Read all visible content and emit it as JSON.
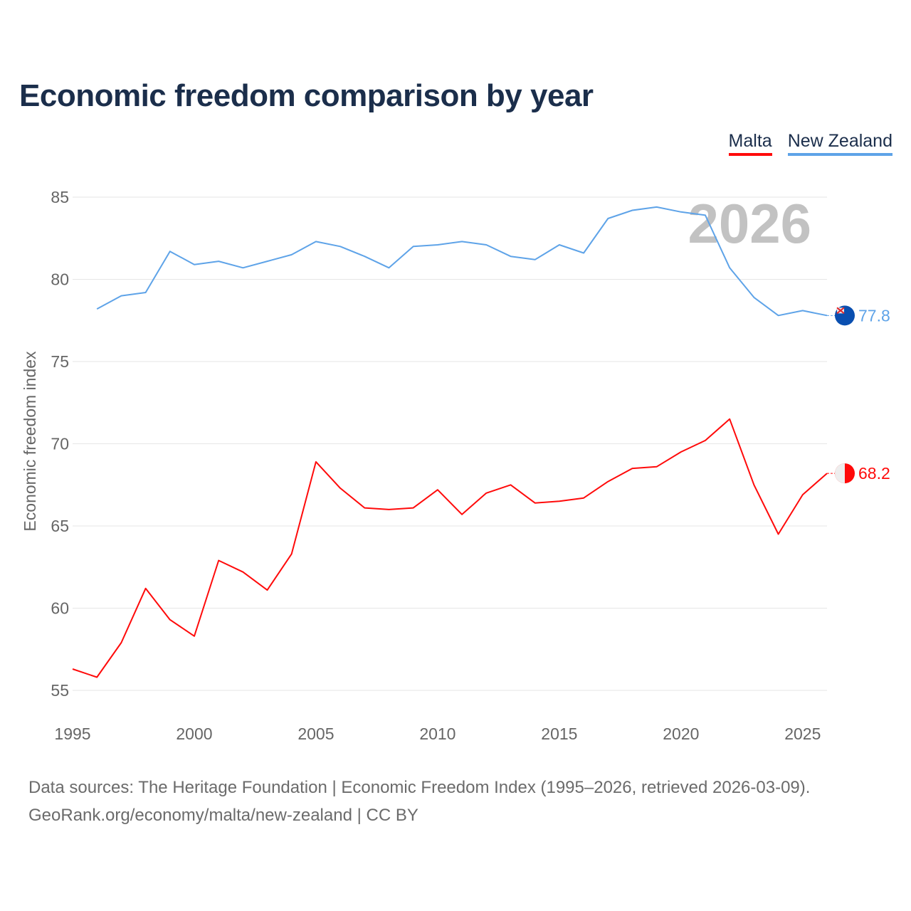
{
  "chart_data": {
    "type": "line",
    "title": "Economic freedom comparison by year",
    "xlabel": "",
    "ylabel": "Economic freedom index",
    "xlim": [
      1995,
      2026
    ],
    "ylim": [
      55,
      85
    ],
    "yticks": [
      55,
      60,
      65,
      70,
      75,
      80,
      85
    ],
    "xticks": [
      1995,
      2000,
      2005,
      2010,
      2015,
      2020,
      2025
    ],
    "grid": true,
    "legend_position": "top-right",
    "current_year_label": "2026",
    "series": [
      {
        "name": "Malta",
        "color": "#ff0a0a",
        "end_label": "68.2",
        "x": [
          1995,
          1996,
          1997,
          1998,
          1999,
          2000,
          2001,
          2002,
          2003,
          2004,
          2005,
          2006,
          2007,
          2008,
          2009,
          2010,
          2011,
          2012,
          2013,
          2014,
          2015,
          2016,
          2017,
          2018,
          2019,
          2020,
          2021,
          2022,
          2023,
          2024,
          2025,
          2026
        ],
        "values": [
          56.3,
          55.8,
          57.9,
          61.2,
          59.3,
          58.3,
          62.9,
          62.2,
          61.1,
          63.3,
          68.9,
          67.3,
          66.1,
          66.0,
          66.1,
          67.2,
          65.7,
          67.0,
          67.5,
          66.4,
          66.5,
          66.7,
          67.7,
          68.5,
          68.6,
          69.5,
          70.2,
          71.5,
          67.5,
          64.5,
          66.9,
          68.2
        ]
      },
      {
        "name": "New Zealand",
        "color": "#5ea3e8",
        "end_label": "77.8",
        "x": [
          1996,
          1997,
          1998,
          1999,
          2000,
          2001,
          2002,
          2003,
          2004,
          2005,
          2006,
          2007,
          2008,
          2009,
          2010,
          2011,
          2012,
          2013,
          2014,
          2015,
          2016,
          2017,
          2018,
          2019,
          2020,
          2021,
          2022,
          2023,
          2024,
          2025,
          2026
        ],
        "values": [
          78.2,
          79.0,
          79.2,
          81.7,
          80.9,
          81.1,
          80.7,
          81.1,
          81.5,
          82.3,
          82.0,
          81.4,
          80.7,
          82.0,
          82.1,
          82.3,
          82.1,
          81.4,
          81.2,
          82.1,
          81.6,
          83.7,
          84.2,
          84.4,
          84.1,
          83.9,
          80.7,
          78.9,
          77.8,
          78.1,
          77.8
        ]
      }
    ]
  },
  "footer": {
    "line1": "Data sources: The Heritage Foundation | Economic Freedom Index (1995–2026, retrieved 2026-03-09).",
    "line2": "GeoRank.org/economy/malta/new-zealand | CC BY"
  }
}
